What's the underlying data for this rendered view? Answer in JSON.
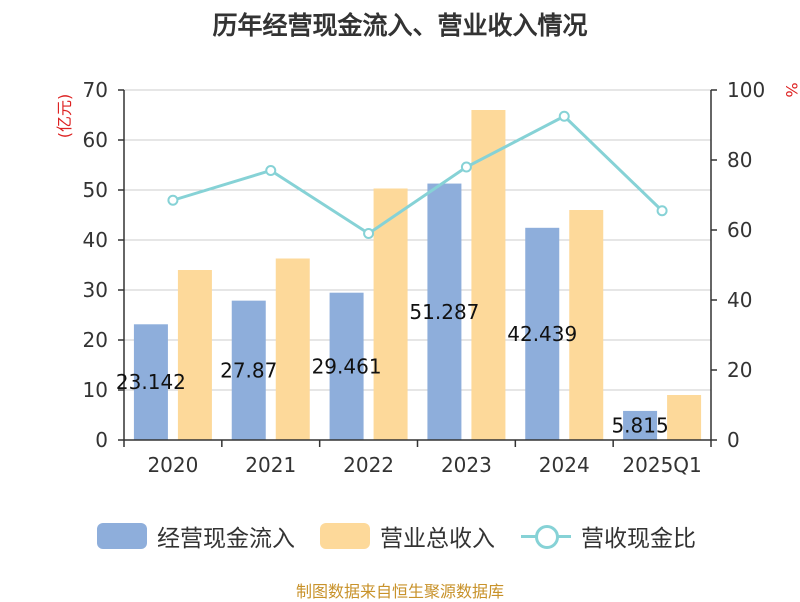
{
  "title": "历年经营现金流入、营业收入情况",
  "source": "制图数据来自恒生聚源数据库",
  "colors": {
    "cash_inflow": "#8eaedb",
    "revenue": "#fdd99a",
    "ratio": "#86d2d6",
    "axis_unit": "#dd2222"
  },
  "chart_data": {
    "type": "bar",
    "categories": [
      "2020",
      "2021",
      "2022",
      "2023",
      "2024",
      "2025Q1"
    ],
    "series": [
      {
        "name": "经营现金流入",
        "type": "bar",
        "axis": "left",
        "values": [
          23.142,
          27.87,
          29.461,
          51.287,
          42.439,
          5.815
        ],
        "data_labels": [
          "23.142",
          "27.87",
          "29.461",
          "51.287",
          "42.439",
          "5.815"
        ]
      },
      {
        "name": "营业总收入",
        "type": "bar",
        "axis": "left",
        "values": [
          34,
          36.3,
          50.3,
          66,
          46,
          9
        ]
      },
      {
        "name": "营收现金比",
        "type": "line",
        "axis": "right",
        "values": [
          68.5,
          77,
          59,
          78,
          92.5,
          65.5
        ]
      }
    ],
    "ylabel": "(亿元)",
    "y2label": "%",
    "ylim": [
      0,
      70
    ],
    "y2lim": [
      0,
      100
    ],
    "yticks": [
      "0",
      "10",
      "20",
      "30",
      "40",
      "50",
      "60",
      "70"
    ],
    "y2ticks": [
      "0",
      "20",
      "40",
      "60",
      "80",
      "100"
    ],
    "grid": true,
    "legend_position": "bottom"
  }
}
